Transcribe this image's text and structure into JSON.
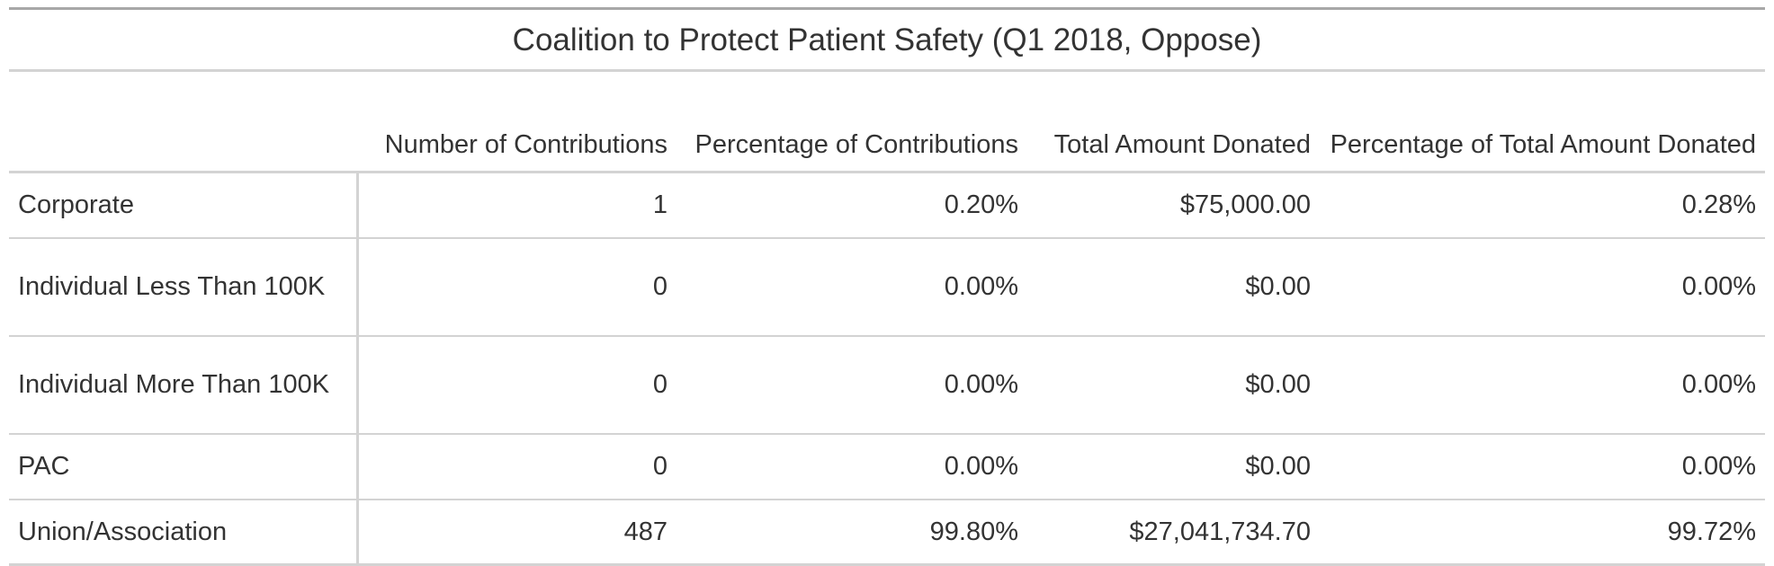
{
  "table": {
    "title": "Coalition to Protect Patient Safety (Q1 2018, Oppose)",
    "columns": [
      "",
      "Number of Contributions",
      "Percentage of Contributions",
      "Total Amount Donated",
      "Percentage of Total Amount Donated"
    ],
    "rows": [
      {
        "category": "Corporate",
        "number": "1",
        "pct_contrib": "0.20%",
        "total": "$75,000.00",
        "pct_total": "0.28%"
      },
      {
        "category": "Individual Less Than 100K",
        "number": "0",
        "pct_contrib": "0.00%",
        "total": "$0.00",
        "pct_total": "0.00%"
      },
      {
        "category": "Individual More Than 100K",
        "number": "0",
        "pct_contrib": "0.00%",
        "total": "$0.00",
        "pct_total": "0.00%"
      },
      {
        "category": "PAC",
        "number": "0",
        "pct_contrib": "0.00%",
        "total": "$0.00",
        "pct_total": "0.00%"
      },
      {
        "category": "Union/Association",
        "number": "487",
        "pct_contrib": "99.80%",
        "total": "$27,041,734.70",
        "pct_total": "99.72%"
      }
    ]
  },
  "chart_data": {
    "type": "table",
    "title": "Coalition to Protect Patient Safety (Q1 2018, Oppose)",
    "columns": [
      "Number of Contributions",
      "Percentage of Contributions",
      "Total Amount Donated",
      "Percentage of Total Amount Donated"
    ],
    "categories": [
      "Corporate",
      "Individual Less Than 100K",
      "Individual More Than 100K",
      "PAC",
      "Union/Association"
    ],
    "series": [
      {
        "name": "Number of Contributions",
        "values": [
          1,
          0,
          0,
          0,
          487
        ]
      },
      {
        "name": "Percentage of Contributions",
        "values": [
          0.2,
          0.0,
          0.0,
          0.0,
          99.8
        ]
      },
      {
        "name": "Total Amount Donated",
        "values": [
          75000.0,
          0.0,
          0.0,
          0.0,
          27041734.7
        ]
      },
      {
        "name": "Percentage of Total Amount Donated",
        "values": [
          0.28,
          0.0,
          0.0,
          0.0,
          99.72
        ]
      }
    ]
  }
}
